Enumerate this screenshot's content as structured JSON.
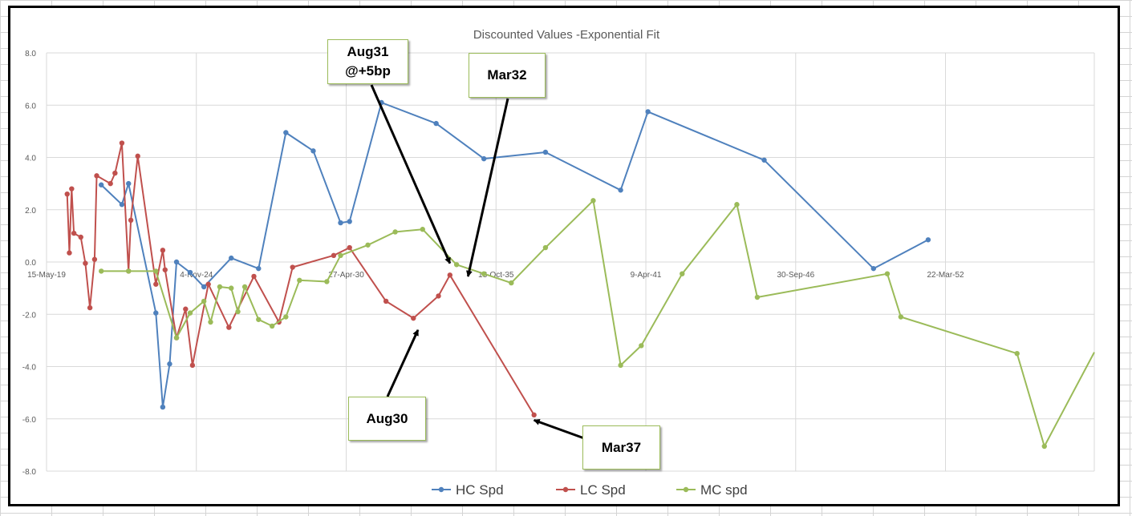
{
  "chart_data": {
    "type": "line",
    "title": "Discounted Values -Exponential Fit",
    "xlabel": "",
    "ylabel": "",
    "x_tick_labels": [
      "15-May-19",
      "4-Nov-24",
      "27-Apr-30",
      "18-Oct-35",
      "9-Apr-41",
      "30-Sep-46",
      "22-Mar-52"
    ],
    "y_tick_labels": [
      "-8.0",
      "-6.0",
      "-4.0",
      "-2.0",
      "0.0",
      "2.0",
      "4.0",
      "6.0",
      "8.0"
    ],
    "xlim": [
      "2019-05-15",
      "2057-09-12"
    ],
    "ylim": [
      -8,
      8
    ],
    "grid": true,
    "legend_position": "bottom",
    "series": [
      {
        "name": "HC Spd",
        "color": "#4f81bd",
        "points": [
          [
            "2021-05-15",
            2.95
          ],
          [
            "2022-02-15",
            2.2
          ],
          [
            "2022-05-15",
            3.0
          ],
          [
            "2023-05-15",
            -1.95
          ],
          [
            "2023-08-15",
            -5.55
          ],
          [
            "2023-11-15",
            -3.9
          ],
          [
            "2024-02-15",
            0.0
          ],
          [
            "2024-08-15",
            -0.4
          ],
          [
            "2025-02-15",
            -0.95
          ],
          [
            "2026-02-15",
            0.15
          ],
          [
            "2027-02-15",
            -0.25
          ],
          [
            "2028-02-15",
            4.95
          ],
          [
            "2029-02-15",
            4.25
          ],
          [
            "2030-02-15",
            1.5
          ],
          [
            "2030-06-15",
            1.55
          ],
          [
            "2031-08-15",
            6.1
          ],
          [
            "2033-08-15",
            5.3
          ],
          [
            "2035-05-15",
            3.95
          ],
          [
            "2037-08-15",
            4.2
          ],
          [
            "2040-05-15",
            2.75
          ],
          [
            "2041-05-15",
            5.75
          ],
          [
            "2045-08-15",
            3.9
          ],
          [
            "2049-08-15",
            -0.25
          ],
          [
            "2051-08-15",
            0.85
          ]
        ]
      },
      {
        "name": "LC Spd",
        "color": "#c0504d",
        "points": [
          [
            "2020-02-15",
            2.6
          ],
          [
            "2020-03-15",
            0.35
          ],
          [
            "2020-04-15",
            2.8
          ],
          [
            "2020-05-15",
            1.1
          ],
          [
            "2020-08-15",
            0.95
          ],
          [
            "2020-10-15",
            -0.05
          ],
          [
            "2020-12-15",
            -1.75
          ],
          [
            "2021-02-15",
            0.1
          ],
          [
            "2021-03-15",
            3.3
          ],
          [
            "2021-09-15",
            3.0
          ],
          [
            "2021-11-15",
            3.4
          ],
          [
            "2022-02-15",
            4.55
          ],
          [
            "2022-05-15",
            -0.35
          ],
          [
            "2022-06-15",
            1.6
          ],
          [
            "2022-09-15",
            4.05
          ],
          [
            "2023-05-15",
            -0.85
          ],
          [
            "2023-08-15",
            0.45
          ],
          [
            "2023-09-15",
            -0.3
          ],
          [
            "2024-02-15",
            -2.9
          ],
          [
            "2024-06-15",
            -1.8
          ],
          [
            "2024-09-15",
            -3.95
          ],
          [
            "2025-04-15",
            -0.85
          ],
          [
            "2026-01-15",
            -2.5
          ],
          [
            "2026-12-15",
            -0.55
          ],
          [
            "2027-11-15",
            -2.3
          ],
          [
            "2028-05-15",
            -0.2
          ],
          [
            "2029-11-15",
            0.25
          ],
          [
            "2030-06-15",
            0.55
          ],
          [
            "2031-10-15",
            -1.5
          ],
          [
            "2032-10-15",
            -2.15
          ],
          [
            "2033-09-15",
            -1.3
          ],
          [
            "2034-02-15",
            -0.5
          ],
          [
            "2037-03-15",
            -5.85
          ]
        ]
      },
      {
        "name": "MC spd",
        "color": "#9bbb59",
        "points": [
          [
            "2021-05-15",
            -0.35
          ],
          [
            "2022-05-15",
            -0.35
          ],
          [
            "2023-05-15",
            -0.35
          ],
          [
            "2024-02-15",
            -2.9
          ],
          [
            "2024-08-15",
            -1.95
          ],
          [
            "2025-02-15",
            -1.5
          ],
          [
            "2025-05-15",
            -2.3
          ],
          [
            "2025-09-15",
            -0.95
          ],
          [
            "2026-02-15",
            -1.0
          ],
          [
            "2026-05-15",
            -1.9
          ],
          [
            "2026-08-15",
            -0.95
          ],
          [
            "2027-02-15",
            -2.2
          ],
          [
            "2027-08-15",
            -2.45
          ],
          [
            "2028-02-15",
            -2.1
          ],
          [
            "2028-08-15",
            -0.7
          ],
          [
            "2029-08-15",
            -0.75
          ],
          [
            "2030-02-15",
            0.25
          ],
          [
            "2031-02-15",
            0.65
          ],
          [
            "2032-02-15",
            1.15
          ],
          [
            "2033-02-15",
            1.25
          ],
          [
            "2034-05-15",
            -0.1
          ],
          [
            "2035-05-15",
            -0.45
          ],
          [
            "2036-05-15",
            -0.8
          ],
          [
            "2037-08-15",
            0.55
          ],
          [
            "2039-05-15",
            2.35
          ],
          [
            "2040-05-15",
            -3.95
          ],
          [
            "2041-02-15",
            -3.2
          ],
          [
            "2042-08-15",
            -0.45
          ],
          [
            "2044-08-15",
            2.2
          ],
          [
            "2045-05-15",
            -1.35
          ],
          [
            "2050-02-15",
            -0.45
          ],
          [
            "2050-08-15",
            -2.1
          ],
          [
            "2054-11-15",
            -3.5
          ],
          [
            "2055-11-15",
            -7.05
          ],
          [
            "2057-09-12",
            -3.45
          ]
        ]
      }
    ]
  },
  "callouts": [
    {
      "name": "callout-aug31",
      "lines": [
        "Aug31",
        "@+5bp"
      ],
      "target": [
        "2034-02-15",
        -0.05
      ]
    },
    {
      "name": "callout-mar32",
      "lines": [
        "Mar32"
      ],
      "target": [
        "2034-10-15",
        -0.55
      ]
    },
    {
      "name": "callout-aug30",
      "lines": [
        "Aug30"
      ],
      "target": [
        "2032-12-15",
        -2.6
      ]
    },
    {
      "name": "callout-mar37",
      "lines": [
        "Mar37"
      ],
      "target": [
        "2037-03-15",
        -6.05
      ]
    }
  ]
}
